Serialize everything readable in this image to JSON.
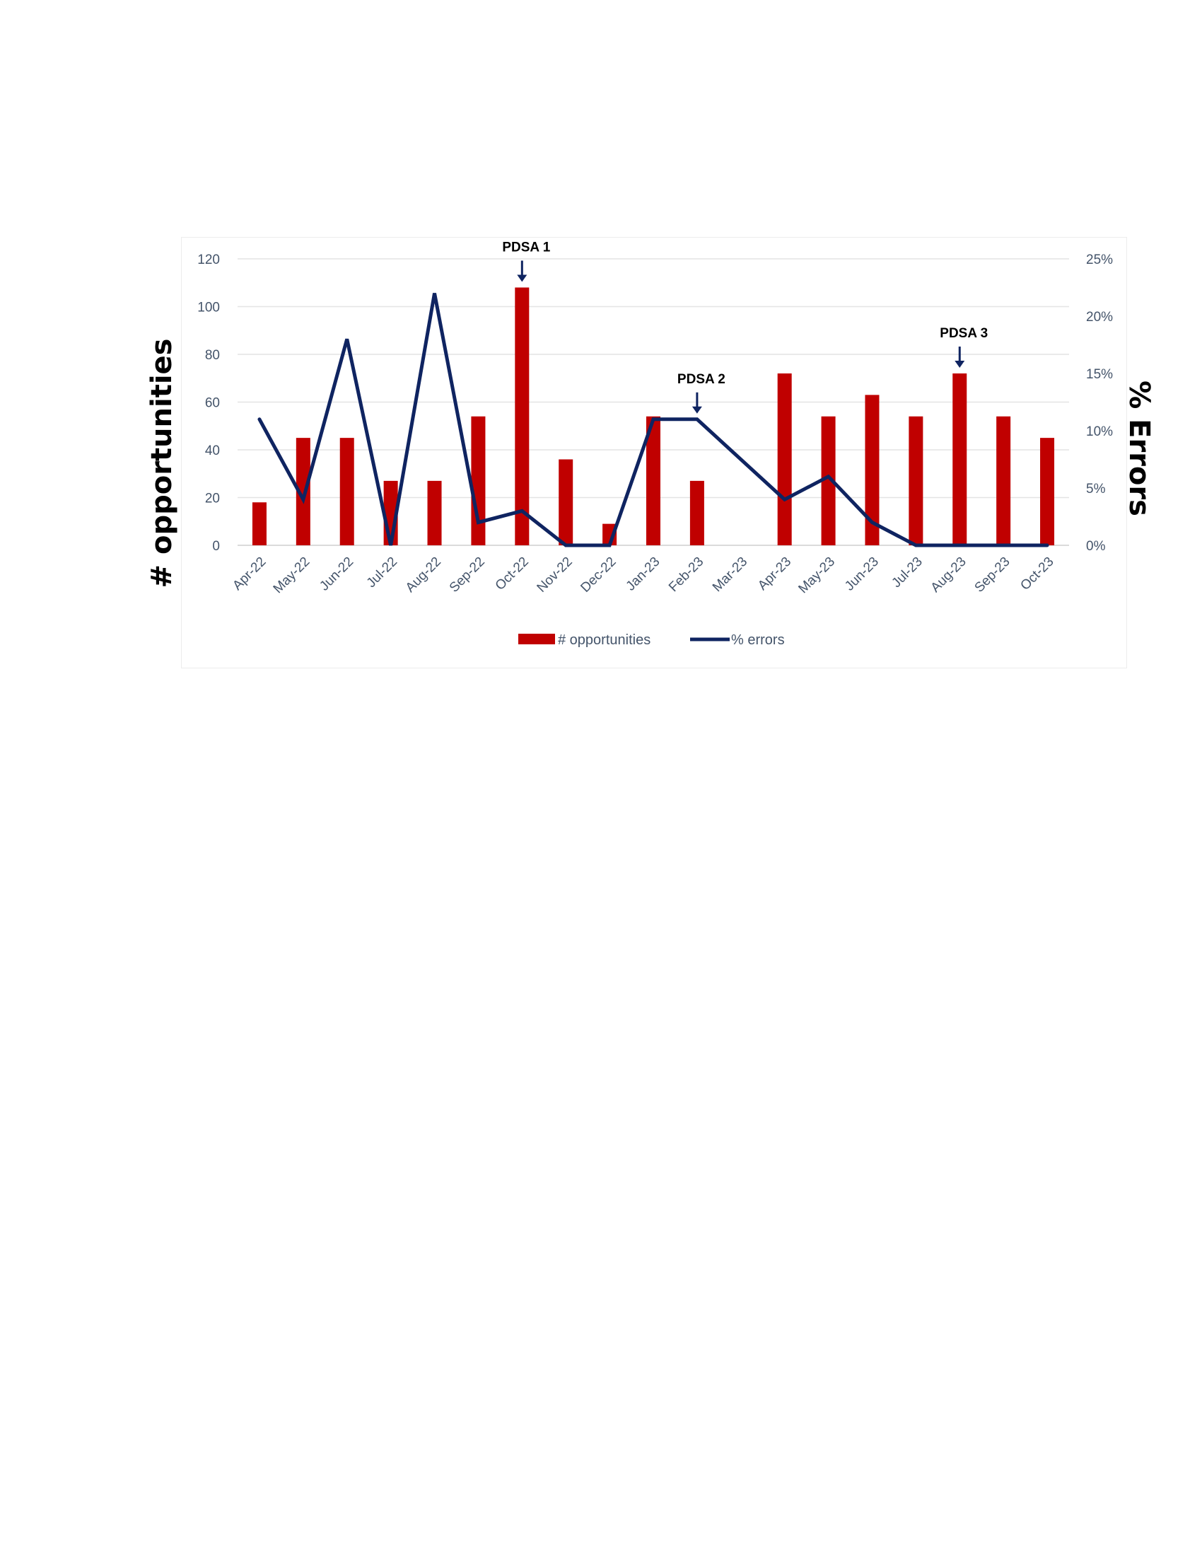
{
  "chart_data": {
    "type": "bar+line",
    "categories": [
      "Apr-22",
      "May-22",
      "Jun-22",
      "Jul-22",
      "Aug-22",
      "Sep-22",
      "Oct-22",
      "Nov-22",
      "Dec-22",
      "Jan-23",
      "Feb-23",
      "Mar-23",
      "Apr-23",
      "May-23",
      "Jun-23",
      "Jul-23",
      "Aug-23",
      "Sep-23",
      "Oct-23"
    ],
    "series": [
      {
        "name": "# opportunities",
        "type": "bar",
        "axis": "left",
        "color": "#c00000",
        "values": [
          18,
          45,
          45,
          27,
          27,
          54,
          108,
          36,
          9,
          54,
          27,
          0,
          72,
          54,
          63,
          54,
          72,
          54,
          45
        ]
      },
      {
        "name": "% errors",
        "type": "line",
        "axis": "right",
        "color": "#0f2461",
        "values": [
          11,
          4,
          18,
          0,
          22,
          2,
          3,
          0,
          0,
          11,
          11,
          null,
          4,
          6,
          2,
          0,
          0,
          0,
          0
        ]
      }
    ],
    "ylabel_left": "# opportunities",
    "ylabel_right": "% Errors",
    "ylim_left": [
      0,
      120
    ],
    "ylim_right": [
      0,
      25
    ],
    "yticks_left": [
      "0",
      "20",
      "40",
      "60",
      "80",
      "100",
      "120"
    ],
    "yticks_right": [
      "0%",
      "5%",
      "10%",
      "15%",
      "20%",
      "25%"
    ],
    "grid": true,
    "legend": "bottom-center",
    "annotations": [
      {
        "text": "PDSA 1",
        "category": "Oct-22"
      },
      {
        "text": "PDSA 2",
        "category": "Feb-23"
      },
      {
        "text": "PDSA 3",
        "category": "Aug-23"
      }
    ]
  }
}
